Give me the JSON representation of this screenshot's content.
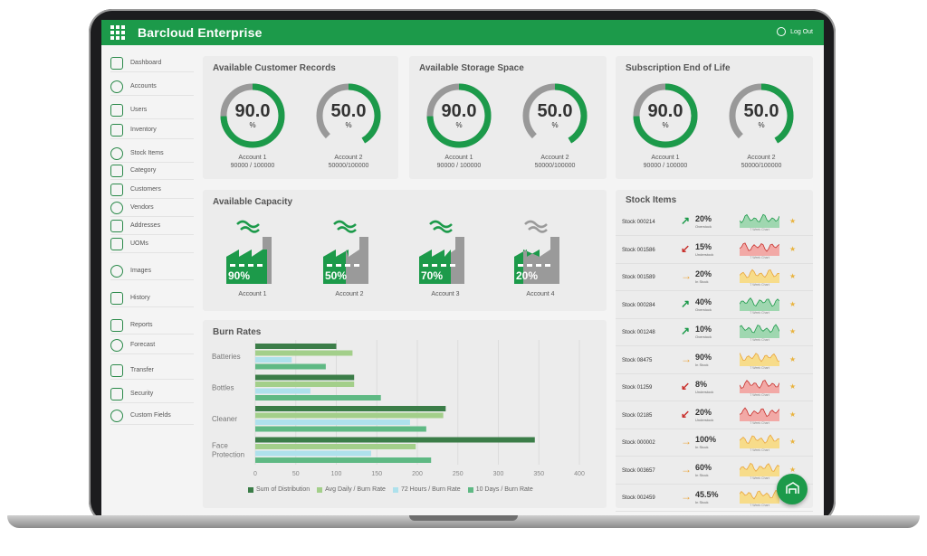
{
  "app": {
    "title": "Barcloud Enterprise",
    "logout_label": "Log Out"
  },
  "sidebar": {
    "items": [
      {
        "label": "Dashboard",
        "icon": "home-icon"
      },
      {
        "label": "Accounts",
        "icon": "accounts-icon"
      },
      {
        "label": "Users",
        "icon": "users-icon"
      },
      {
        "label": "Inventory",
        "icon": "inventory-icon"
      },
      {
        "label": "Stock Items",
        "icon": "stock-items-icon"
      },
      {
        "label": "Category",
        "icon": "category-icon"
      },
      {
        "label": "Customers",
        "icon": "customers-icon"
      },
      {
        "label": "Vendors",
        "icon": "vendors-icon"
      },
      {
        "label": "Addresses",
        "icon": "location-pin-icon"
      },
      {
        "label": "UOMs",
        "icon": "uom-icon"
      },
      {
        "label": "Images",
        "icon": "images-icon"
      },
      {
        "label": "History",
        "icon": "history-icon"
      },
      {
        "label": "Reports",
        "icon": "reports-icon"
      },
      {
        "label": "Forecast",
        "icon": "forecast-icon"
      },
      {
        "label": "Transfer",
        "icon": "transfer-icon"
      },
      {
        "label": "Security",
        "icon": "shield-icon"
      },
      {
        "label": "Custom Fields",
        "icon": "custom-fields-icon"
      }
    ]
  },
  "panels": {
    "customer_records": {
      "title": "Available Customer Records",
      "gauges": [
        {
          "value": "90.0",
          "pct_sign": "%",
          "fraction": 0.9,
          "color": "#1c9a4a",
          "account": "Account 1",
          "detail": "90000 / 100000"
        },
        {
          "value": "50.0",
          "pct_sign": "%",
          "fraction": 0.5,
          "color": "#1c9a4a",
          "account": "Account 2",
          "detail": "50000/100000"
        }
      ]
    },
    "storage_space": {
      "title": "Available Storage Space",
      "gauges": [
        {
          "value": "90.0",
          "pct_sign": "%",
          "fraction": 0.9,
          "color": "#1c9a4a",
          "account": "Account 1",
          "detail": "90000 / 100000"
        },
        {
          "value": "50.0",
          "pct_sign": "%",
          "fraction": 0.5,
          "color": "#1c9a4a",
          "account": "Account 2",
          "detail": "50000/100000"
        }
      ]
    },
    "subscription": {
      "title": "Subscription End of Life",
      "gauges": [
        {
          "value": "90.0",
          "pct_sign": "%",
          "fraction": 0.9,
          "color": "#1c9a4a",
          "account": "Account 1",
          "detail": "90000 / 100000"
        },
        {
          "value": "50.0",
          "pct_sign": "%",
          "fraction": 0.5,
          "color": "#1c9a4a",
          "account": "Account 2",
          "detail": "50000/100000"
        }
      ]
    },
    "capacity": {
      "title": "Available Capacity",
      "factories": [
        {
          "pct": "90%",
          "fraction": 0.9,
          "account": "Account 1"
        },
        {
          "pct": "50%",
          "fraction": 0.5,
          "account": "Account 2"
        },
        {
          "pct": "70%",
          "fraction": 0.7,
          "account": "Account 3"
        },
        {
          "pct": "20%",
          "fraction": 0.2,
          "account": "Account 4"
        }
      ]
    },
    "burn_rates": {
      "title": "Burn Rates"
    },
    "stock_items": {
      "title": "Stock Items",
      "chart_caption": "7 Week Chart",
      "rows": [
        {
          "name": "Stock 000214",
          "trend": "up",
          "pct": "20%",
          "status": "Overstock"
        },
        {
          "name": "Stock 001586",
          "trend": "down",
          "pct": "15%",
          "status": "Understock"
        },
        {
          "name": "Stock 001589",
          "trend": "flat",
          "pct": "20%",
          "status": "In Stock"
        },
        {
          "name": "Stock 000284",
          "trend": "up",
          "pct": "40%",
          "status": "Overstock"
        },
        {
          "name": "Stock 001248",
          "trend": "up",
          "pct": "10%",
          "status": "Overstock"
        },
        {
          "name": "Stock 08475",
          "trend": "flat",
          "pct": "90%",
          "status": "In Stock"
        },
        {
          "name": "Stock 01259",
          "trend": "down",
          "pct": "8%",
          "status": "Understock"
        },
        {
          "name": "Stock 02185",
          "trend": "down",
          "pct": "20%",
          "status": "Understock"
        },
        {
          "name": "Stock 000002",
          "trend": "flat",
          "pct": "100%",
          "status": "In Stock"
        },
        {
          "name": "Stock 003657",
          "trend": "flat",
          "pct": "60%",
          "status": "In Stock"
        },
        {
          "name": "Stock 002459",
          "trend": "flat",
          "pct": "45.5%",
          "status": "In Stock"
        }
      ]
    }
  },
  "colors": {
    "brand": "#1c9a4a",
    "up": "#1c9a4a",
    "down": "#c8302c",
    "flat": "#e9a43a",
    "gauge_track": "#999999"
  },
  "chart_data": {
    "type": "bar",
    "orientation": "horizontal",
    "categories": [
      "Batteries",
      "Bottles",
      "Cleaner",
      "Face Protection"
    ],
    "series": [
      {
        "name": "Sum of Distribution",
        "color": "#3b7d48",
        "values": [
          100,
          122,
          235,
          345
        ]
      },
      {
        "name": "Avg Daily / Burn Rate",
        "color": "#a3cf8a",
        "values": [
          120,
          122,
          232,
          198
        ]
      },
      {
        "name": "72 Hours / Burn Rate",
        "color": "#aee1ec",
        "values": [
          45,
          68,
          191,
          143
        ]
      },
      {
        "name": "10 Days / Burn Rate",
        "color": "#5fb984",
        "values": [
          87,
          155,
          211,
          217
        ]
      }
    ],
    "xticks": [
      0,
      50,
      100,
      150,
      200,
      250,
      300,
      350,
      400
    ],
    "xlim": [
      0,
      400
    ],
    "grid": true,
    "legend_position": "bottom"
  }
}
